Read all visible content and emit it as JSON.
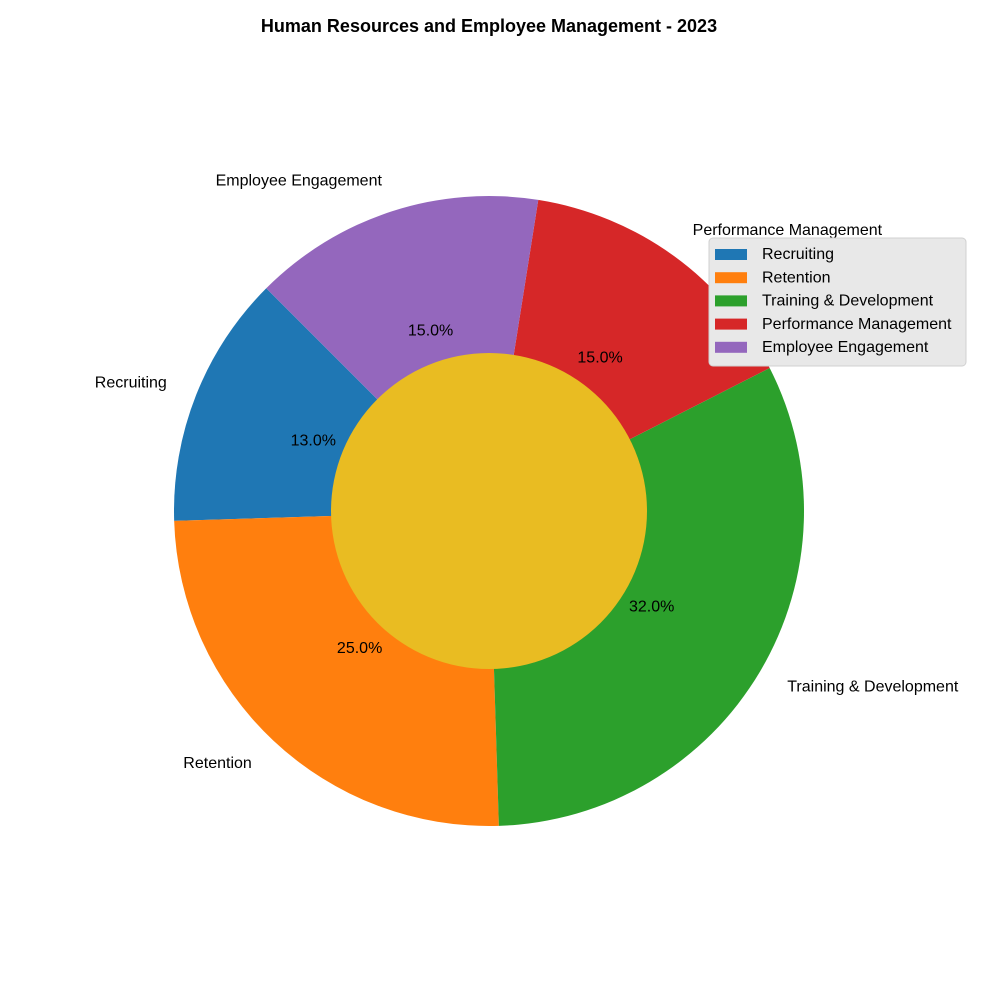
{
  "chart_data": {
    "type": "pie",
    "variant": "donut",
    "title": "Human Resources and Employee Management - 2023",
    "categories": [
      "Recruiting",
      "Retention",
      "Training & Development",
      "Performance Management",
      "Employee Engagement"
    ],
    "values": [
      13.0,
      25.0,
      32.0,
      15.0,
      15.0
    ],
    "value_labels": [
      "13.0%",
      "25.0%",
      "32.0%",
      "15.0%",
      "15.0%"
    ],
    "colors": [
      "#1f77b4",
      "#ff7f0e",
      "#2ca02c",
      "#d62728",
      "#9467bd"
    ],
    "center_color": "#e9bc22",
    "start_angle_deg": 135,
    "direction": "counterclockwise",
    "legend": {
      "placement": "upper-right",
      "entries": [
        "Recruiting",
        "Retention",
        "Training & Development",
        "Performance Management",
        "Employee Engagement"
      ]
    }
  }
}
